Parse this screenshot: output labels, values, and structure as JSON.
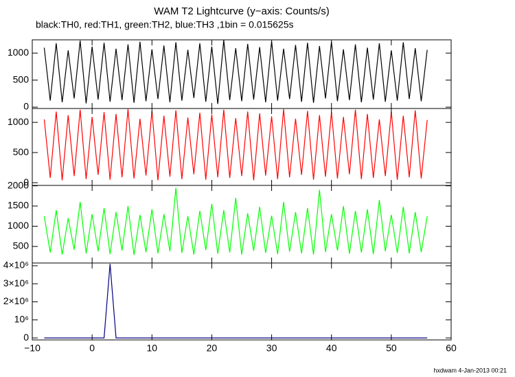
{
  "chart_data": [
    {
      "type": "line",
      "title": "WAM T2 Lightcurve (y−axis: Counts/s)",
      "subtitle": "black:TH0, red:TH1, green:TH2, blue:TH3 ,1bin = 0.015625s",
      "x": [
        -8,
        -7,
        -6,
        -5,
        -4,
        -3,
        -2,
        -1,
        0,
        1,
        2,
        3,
        4,
        5,
        6,
        7,
        8,
        9,
        10,
        11,
        12,
        13,
        14,
        15,
        16,
        17,
        18,
        19,
        20,
        21,
        22,
        23,
        24,
        25,
        26,
        27,
        28,
        29,
        30,
        31,
        32,
        33,
        34,
        35,
        36,
        37,
        38,
        39,
        40,
        41,
        42,
        43,
        44,
        45,
        46,
        47,
        48,
        49,
        50,
        51,
        52,
        53,
        54,
        55,
        56
      ],
      "color": "#000000",
      "values": [
        1100,
        120,
        1180,
        90,
        1050,
        160,
        1230,
        70,
        1120,
        140,
        1190,
        100,
        1080,
        130,
        1160,
        80,
        1210,
        110,
        1070,
        150,
        1140,
        90,
        1200,
        120,
        1060,
        170,
        1180,
        100,
        1120,
        60,
        1240,
        130,
        1090,
        110,
        1170,
        140,
        1110,
        90,
        1220,
        120,
        1080,
        150,
        1150,
        100,
        1190,
        80,
        1130,
        160,
        1210,
        110,
        1070,
        130,
        1160,
        90,
        1100,
        140,
        1180,
        100,
        1050,
        120,
        1200,
        150,
        1090,
        110,
        1060
      ],
      "xlim": [
        -10,
        60
      ],
      "xticks": [
        {
          "value": -10,
          "label": "−10"
        },
        0,
        10,
        20,
        30,
        40,
        50,
        60
      ],
      "ylim": [
        -25,
        1245
      ],
      "yticks": [
        0,
        500,
        1000
      ]
    },
    {
      "type": "line",
      "x": [
        -8,
        -7,
        -6,
        -5,
        -4,
        -3,
        -2,
        -1,
        0,
        1,
        2,
        3,
        4,
        5,
        6,
        7,
        8,
        9,
        10,
        11,
        12,
        13,
        14,
        15,
        16,
        17,
        18,
        19,
        20,
        21,
        22,
        23,
        24,
        25,
        26,
        27,
        28,
        29,
        30,
        31,
        32,
        33,
        34,
        35,
        36,
        37,
        38,
        39,
        40,
        41,
        42,
        43,
        44,
        45,
        46,
        47,
        48,
        49,
        50,
        51,
        52,
        53,
        54,
        55,
        56
      ],
      "color": "#ff0000",
      "values": [
        1050,
        80,
        1180,
        40,
        1120,
        110,
        1210,
        60,
        1090,
        130,
        1170,
        50,
        1140,
        90,
        1220,
        70,
        1060,
        120,
        1190,
        40,
        1110,
        100,
        1200,
        60,
        1080,
        140,
        1160,
        50,
        1130,
        90,
        1210,
        80,
        1070,
        110,
        1180,
        40,
        1150,
        120,
        1100,
        60,
        1220,
        90,
        1060,
        130,
        1190,
        50,
        1120,
        100,
        1170,
        70,
        1090,
        140,
        1210,
        60,
        1140,
        80,
        1050,
        110,
        1180,
        50,
        1110,
        90,
        1200,
        70,
        1040
      ],
      "xlim": [
        -10,
        60
      ],
      "xticks": [
        {
          "value": -10,
          "label": "−10"
        },
        0,
        10,
        20,
        30,
        40,
        50,
        60
      ],
      "ylim": [
        -45,
        1230
      ],
      "yticks": [
        0,
        500,
        1000
      ]
    },
    {
      "type": "line",
      "x": [
        -8,
        -7,
        -6,
        -5,
        -4,
        -3,
        -2,
        -1,
        0,
        1,
        2,
        3,
        4,
        5,
        6,
        7,
        8,
        9,
        10,
        11,
        12,
        13,
        14,
        15,
        16,
        17,
        18,
        19,
        20,
        21,
        22,
        23,
        24,
        25,
        26,
        27,
        28,
        29,
        30,
        31,
        32,
        33,
        34,
        35,
        36,
        37,
        38,
        39,
        40,
        41,
        42,
        43,
        44,
        45,
        46,
        47,
        48,
        49,
        50,
        51,
        52,
        53,
        54,
        55,
        56
      ],
      "color": "#00ff00",
      "values": [
        1250,
        350,
        1400,
        300,
        1200,
        420,
        1600,
        330,
        1300,
        380,
        1450,
        310,
        1350,
        400,
        1500,
        290,
        1280,
        360,
        1420,
        330,
        1300,
        380,
        1950,
        340,
        1250,
        300,
        1380,
        410,
        1550,
        320,
        1400,
        350,
        1700,
        300,
        1320,
        390,
        1480,
        340,
        1260,
        310,
        1600,
        370,
        1350,
        330,
        1450,
        300,
        1900,
        360,
        1300,
        400,
        1500,
        320,
        1380,
        350,
        1420,
        310,
        1650,
        380,
        1280,
        340,
        1480,
        330,
        1350,
        360,
        1250
      ],
      "xlim": [
        -10,
        60
      ],
      "xticks": [
        {
          "value": -10,
          "label": "−10"
        },
        0,
        10,
        20,
        30,
        40,
        50,
        60
      ],
      "ylim": [
        90,
        2010
      ],
      "yticks": [
        500,
        1000,
        1500,
        2000
      ]
    },
    {
      "type": "line",
      "x": [
        -8,
        -7,
        -6,
        -5,
        -4,
        -3,
        -2,
        -1,
        0,
        1,
        2,
        3,
        4,
        5,
        6,
        7,
        8,
        9,
        10,
        11,
        12,
        13,
        14,
        15,
        16,
        17,
        18,
        19,
        20,
        21,
        22,
        23,
        24,
        25,
        26,
        27,
        28,
        29,
        30,
        31,
        32,
        33,
        34,
        35,
        36,
        37,
        38,
        39,
        40,
        41,
        42,
        43,
        44,
        45,
        46,
        47,
        48,
        49,
        50,
        51,
        52,
        53,
        54,
        55,
        56
      ],
      "color": "#000080",
      "values": [
        0,
        0,
        0,
        0,
        0,
        0,
        0,
        0,
        0,
        0,
        0,
        4100000,
        0,
        0,
        0,
        0,
        0,
        0,
        0,
        0,
        0,
        0,
        0,
        0,
        0,
        0,
        0,
        0,
        0,
        0,
        0,
        0,
        0,
        0,
        0,
        0,
        0,
        0,
        0,
        0,
        0,
        0,
        0,
        0,
        0,
        0,
        0,
        0,
        0,
        0,
        0,
        0,
        0,
        0,
        0,
        0,
        0,
        0,
        0,
        0,
        0,
        0,
        0,
        0,
        0
      ],
      "xlim": [
        -10,
        60
      ],
      "xticks": [
        {
          "value": -10,
          "label": "−10"
        },
        0,
        10,
        20,
        30,
        40,
        50,
        60
      ],
      "ylim": [
        -110000,
        4150000
      ],
      "yticks": [
        0,
        {
          "value": 1000000,
          "label": "10⁶"
        },
        {
          "value": 2000000,
          "label": "2×10⁶"
        },
        {
          "value": 3000000,
          "label": "3×10⁶"
        },
        {
          "value": 4000000,
          "label": "4×10⁶"
        }
      ],
      "show_xtick_labels": true
    }
  ],
  "footer": "hxdwam  4-Jan-2013 00:21"
}
